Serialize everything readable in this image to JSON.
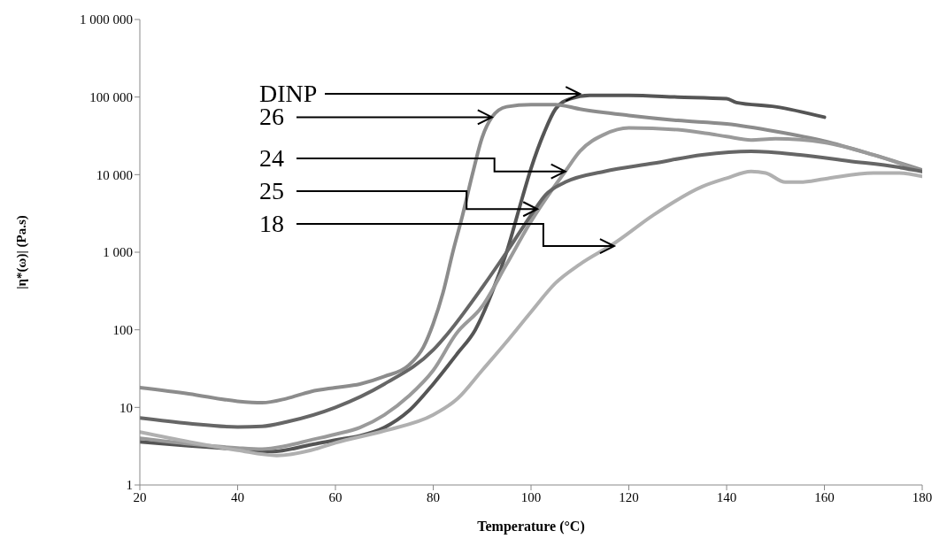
{
  "chart_data": {
    "type": "line",
    "xlabel": "Temperature  (°C)",
    "ylabel": "|η*(ω)| (Pa.s)",
    "log": "y",
    "xlim": [
      20,
      180
    ],
    "xticks": [
      20,
      40,
      60,
      80,
      100,
      120,
      140,
      160,
      180
    ],
    "ylim": [
      1,
      1000000
    ],
    "yticks": [
      1,
      10,
      100,
      {
        "value": 1000,
        "label": "1 000"
      },
      {
        "value": 10000,
        "label": "10 000"
      },
      {
        "value": 100000,
        "label": "100 000"
      },
      {
        "value": 1000000,
        "label": "1 000 000"
      }
    ],
    "grid": false,
    "legend": false,
    "marker": "none",
    "line_style": "solid",
    "series": [
      {
        "color": "#555555",
        "x": [
          20,
          30,
          40,
          47,
          55,
          60,
          65,
          70,
          75,
          80,
          85,
          88.6,
          92,
          95,
          98.2,
          100,
          102.7,
          105,
          108,
          112,
          120,
          130,
          140,
          142,
          150,
          160
        ],
        "values": [
          3.6,
          3.2,
          2.9,
          2.7,
          3.3,
          3.8,
          4.3,
          5.5,
          9,
          20,
          50,
          100,
          300,
          1000,
          5000,
          12000,
          35000,
          70000,
          95000,
          105000,
          105000,
          100000,
          95000,
          85000,
          75000,
          55000
        ]
      },
      {
        "color": "#8c8c8c",
        "x": [
          20,
          30,
          40,
          45,
          50,
          55,
          60,
          65,
          70,
          75,
          78,
          80,
          82,
          84,
          86,
          88,
          90,
          92,
          95,
          100,
          105,
          110,
          120,
          130,
          140,
          150,
          160,
          170,
          180
        ],
        "values": [
          18,
          15,
          12,
          11.5,
          13,
          16,
          18,
          20,
          25,
          35,
          60,
          120,
          300,
          1000,
          3000,
          10000,
          30000,
          55000,
          75000,
          80000,
          80000,
          70000,
          58000,
          50000,
          45000,
          36000,
          27000,
          18000,
          11500
        ]
      },
      {
        "color": "#9a9a9a",
        "x": [
          20,
          30,
          40,
          45,
          50,
          55,
          60,
          65,
          70,
          75,
          80,
          84.7,
          90,
          95,
          100,
          104,
          107,
          110,
          115,
          120,
          130,
          136,
          140,
          145,
          150,
          160,
          170,
          180
        ],
        "values": [
          4,
          3.4,
          3,
          2.9,
          3.2,
          3.8,
          4.5,
          5.5,
          8,
          14,
          30,
          89,
          200,
          700,
          2500,
          6000,
          11000,
          20000,
          33000,
          40000,
          38000,
          34000,
          31000,
          28000,
          29000,
          26000,
          18000,
          11000
        ]
      },
      {
        "color": "#666666",
        "x": [
          20,
          30,
          40,
          45,
          50,
          60,
          70,
          80,
          83,
          90,
          95,
          100,
          103,
          107,
          115,
          125,
          135,
          145,
          155,
          165,
          175,
          180
        ],
        "values": [
          7.3,
          6.2,
          5.6,
          5.7,
          6.5,
          10,
          20,
          55,
          90,
          350,
          1000,
          3000,
          5500,
          8000,
          11000,
          14000,
          18000,
          20000,
          18000,
          15000,
          12500,
          11000
        ]
      },
      {
        "color": "#b0b0b0",
        "x": [
          20,
          30,
          40,
          48,
          55,
          60,
          70,
          80,
          85,
          90,
          95,
          100,
          105,
          110,
          117,
          125,
          135,
          140,
          145,
          148,
          152,
          155,
          160,
          170,
          175,
          180
        ],
        "values": [
          4.8,
          3.6,
          2.8,
          2.4,
          2.8,
          3.5,
          5,
          8,
          13,
          30,
          70,
          170,
          400,
          700,
          1300,
          3000,
          7000,
          9000,
          11000,
          10500,
          8000,
          8000,
          8800,
          10500,
          10500,
          9500
        ]
      }
    ],
    "annotations": [
      {
        "text": "DINP",
        "x": 110,
        "y": 110000
      },
      {
        "text": "26",
        "x": 92,
        "y": 55000
      },
      {
        "text": "24",
        "x": 107,
        "y": 11000
      },
      {
        "text": "25",
        "x": 101.3,
        "y": 3600
      },
      {
        "text": "18",
        "x": 117,
        "y": 1200
      }
    ]
  }
}
